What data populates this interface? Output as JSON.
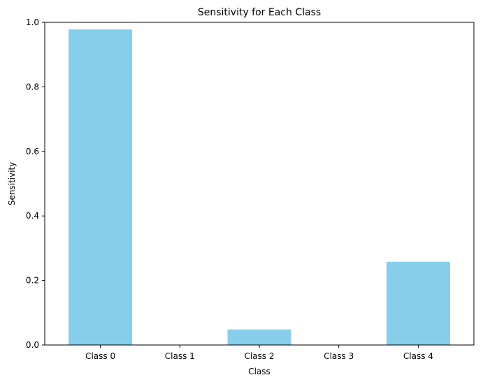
{
  "chart_data": {
    "type": "bar",
    "title": "Sensitivity for Each Class",
    "xlabel": "Class",
    "ylabel": "Sensitivity",
    "categories": [
      "Class 0",
      "Class 1",
      "Class 2",
      "Class 3",
      "Class 4"
    ],
    "values": [
      0.978,
      0.0,
      0.048,
      0.0,
      0.258
    ],
    "ylim": [
      0,
      1.0
    ],
    "yticks": [
      "0.0",
      "0.2",
      "0.4",
      "0.6",
      "0.8",
      "1.0"
    ],
    "ytick_values": [
      0,
      0.2,
      0.4,
      0.6,
      0.8,
      1.0
    ],
    "grid": false,
    "legend": "none",
    "bar_color": "#87ceeb"
  }
}
